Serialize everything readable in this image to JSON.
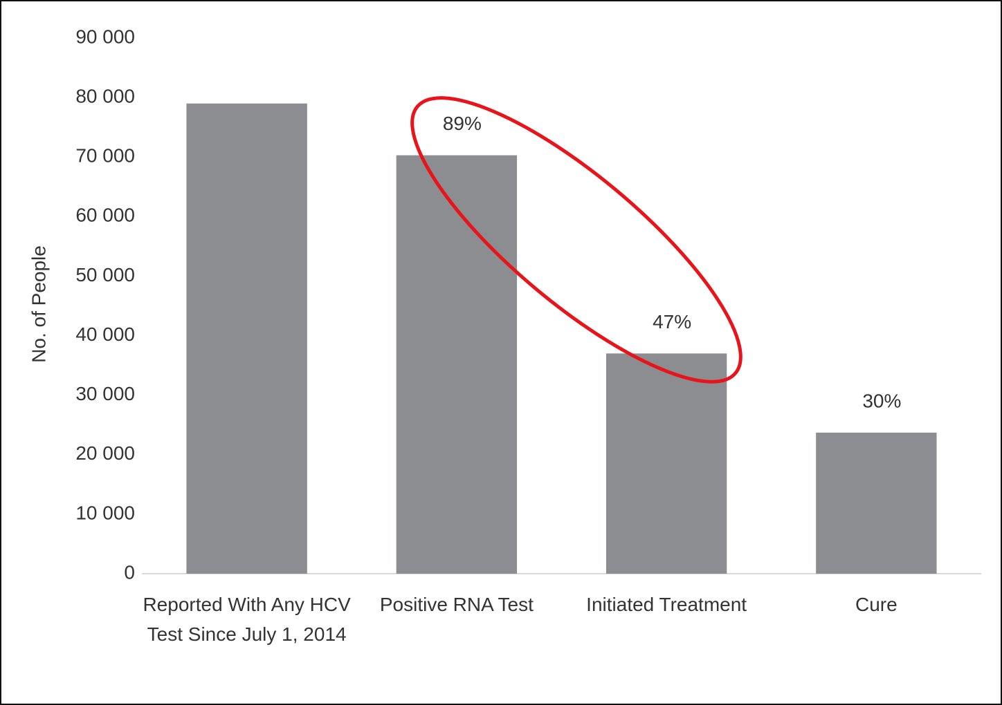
{
  "chart_data": {
    "type": "bar",
    "y_axis_label": "No. of People",
    "categories": [
      "Reported With Any HCV Test Since July 1, 2014",
      "Positive RNA Test",
      "Initiated Treatment",
      "Cure"
    ],
    "values": [
      79000,
      70300,
      37000,
      23700
    ],
    "percent_labels": [
      null,
      "89%",
      "47%",
      "30%"
    ],
    "color": "#8c8d90",
    "ylim": [
      0,
      90000
    ],
    "yticks": [
      0,
      {
        "value": 10000,
        "label": "10 000"
      },
      {
        "value": 20000,
        "label": "20 000"
      },
      {
        "value": 30000,
        "label": "30 000"
      },
      {
        "value": 40000,
        "label": "40 000"
      },
      {
        "value": 50000,
        "label": "50 000"
      },
      {
        "value": 60000,
        "label": "60 000"
      },
      {
        "value": 70000,
        "label": "70 000"
      },
      {
        "value": 80000,
        "label": "80 000"
      },
      {
        "value": 90000,
        "label": "90 000"
      }
    ],
    "grid": false
  }
}
